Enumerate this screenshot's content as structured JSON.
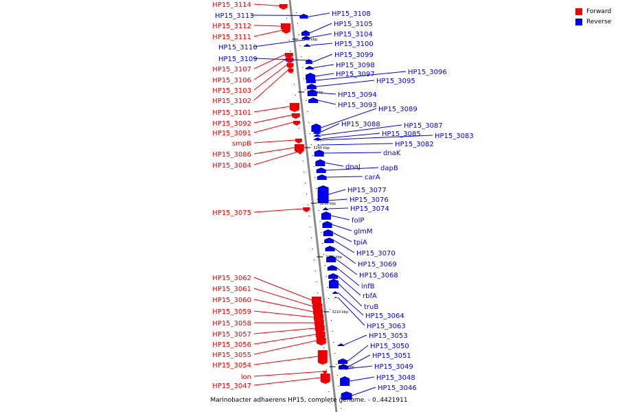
{
  "colors": {
    "forward": "#ee0000",
    "reverse": "#0000ee",
    "backbone": "#8a8a8a"
  },
  "legend": [
    {
      "label": "Forward",
      "color": "#ee0000"
    },
    {
      "label": "Reverse",
      "color": "#0000ee"
    }
  ],
  "caption": "Marinobacter adhaerens HP15, complete genome. - 0..4421911",
  "scale_labels": [
    "3260 kbp",
    "3250 kbp",
    "3240 kbp",
    "3230 kbp",
    "3220 kbp",
    "3210 kbp",
    "3200 kbp"
  ],
  "forward_genes": [
    "HP15_3114",
    "HP15_3112",
    "HP15_3111",
    "HP15_3107",
    "HP15_3106",
    "HP15_3103",
    "HP15_3102",
    "HP15_3101",
    "HP15_3092",
    "HP15_3091",
    "smpB",
    "HP15_3086",
    "HP15_3084",
    "HP15_3075",
    "HP15_3062",
    "HP15_3061",
    "HP15_3060",
    "HP15_3059",
    "HP15_3058",
    "HP15_3057",
    "HP15_3056",
    "HP15_3055",
    "HP15_3054",
    "lon",
    "HP15_3047"
  ],
  "reverse_genes": [
    "HP15_3113",
    "HP15_3110",
    "HP15_3109",
    "HP15_3108",
    "HP15_3105",
    "HP15_3104",
    "HP15_3100",
    "HP15_3099",
    "HP15_3098",
    "HP15_3097",
    "HP15_3096",
    "HP15_3095",
    "HP15_3094",
    "HP15_3093",
    "HP15_3089",
    "HP15_3088",
    "HP15_3087",
    "HP15_3085",
    "HP15_3083",
    "HP15_3082",
    "dnaK",
    "dnaJ",
    "dapB",
    "carA",
    "HP15_3077",
    "HP15_3076",
    "HP15_3074",
    "folP",
    "glmM",
    "tpiA",
    "HP15_3070",
    "HP15_3069",
    "HP15_3068",
    "infB",
    "rbfA",
    "truB",
    "HP15_3064",
    "HP15_3063",
    "HP15_3053",
    "HP15_3050",
    "HP15_3051",
    "HP15_3049",
    "HP15_3048",
    "HP15_3046"
  ]
}
